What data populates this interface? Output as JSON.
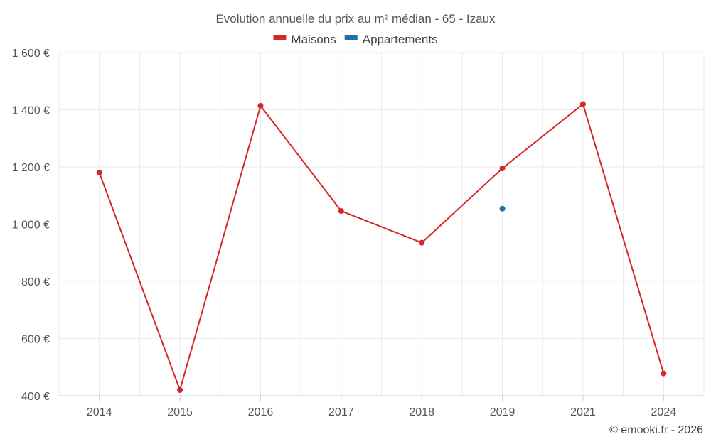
{
  "chart_data": {
    "type": "line",
    "title": "Evolution annuelle du prix au m² médian - 65 - Izaux",
    "categories": [
      "2014",
      "2015",
      "2016",
      "2017",
      "2018",
      "2019",
      "2021",
      "2024"
    ],
    "series": [
      {
        "name": "Maisons",
        "color": "#d62728",
        "values": [
          1180,
          420,
          1414,
          1046,
          935,
          1195,
          1420,
          478
        ]
      },
      {
        "name": "Appartements",
        "color": "#1f6fa8",
        "values": [
          null,
          null,
          null,
          null,
          null,
          1054,
          null,
          null
        ]
      }
    ],
    "y_ticks": [
      400,
      600,
      800,
      1000,
      1200,
      1400,
      1600
    ],
    "y_tick_labels": [
      "400 €",
      "600 €",
      "800 €",
      "1 000 €",
      "1 200 €",
      "1 400 €",
      "1 600 €"
    ],
    "ylim": [
      400,
      1600
    ],
    "xlabel": "",
    "ylabel": "",
    "grid": true,
    "legend_position": "top-center"
  },
  "credit": "© emooki.fr - 2026"
}
